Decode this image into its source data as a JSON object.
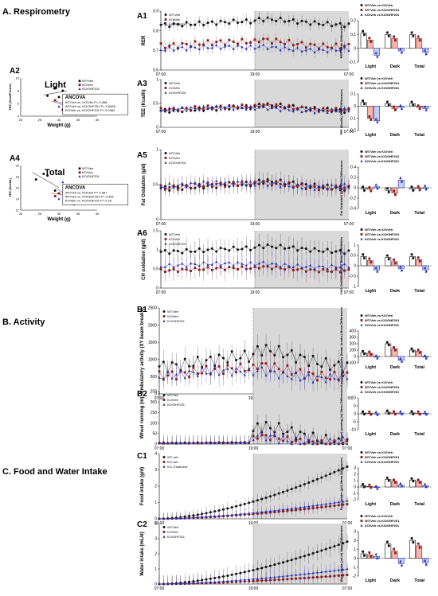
{
  "sections": {
    "respirometry": "A. Respirometry",
    "activity": "B. Activity",
    "food_water": "C. Food and Water Intake"
  },
  "colors": {
    "wt": "#111111",
    "ko_veh": "#8b1a1a",
    "ko_ghf": "#1f2bb0",
    "wt_bar": "#ffffff",
    "ko_bar": "#f2b8b0",
    "ghf_bar": "#c8cdf5"
  },
  "series_names": [
    "WT/Veh",
    "KO/Veh",
    "KO/GHF201"
  ],
  "series_names_c1": [
    "WT-veh",
    "KO-veh",
    "KO-Treatment"
  ],
  "comparisons": [
    "WT/Veh vs KO/Veh",
    "WT/Veh vs KO/GHF201",
    "KO/Veh vs KO/GHF201"
  ],
  "bar_categories": [
    "Light",
    "Dark",
    "Total"
  ],
  "time_ticks": [
    "07:00",
    "19:00",
    "07:00"
  ],
  "chart_data": [
    {
      "id": "A1",
      "type": "line",
      "ylabel": "RER",
      "yticks": [
        0.6,
        0.7,
        0.8,
        0.9
      ],
      "ylim": [
        0.6,
        0.9
      ],
      "base": [
        0.83,
        0.72,
        0.7
      ],
      "amp": [
        0.03,
        0.04,
        0.03
      ],
      "err": 0.03,
      "dark_shade": [
        0.5,
        1.0
      ]
    },
    {
      "id": "A3",
      "type": "line",
      "ylabel": "TEE (Kcal/h)",
      "yticks": [
        0.0,
        0.5,
        1.0
      ],
      "ylim": [
        0,
        1.0
      ],
      "base": [
        0.35,
        0.36,
        0.34
      ],
      "amp": [
        0.12,
        0.12,
        0.12
      ],
      "err": 0.05,
      "dark_shade": [
        0.5,
        1.0
      ]
    },
    {
      "id": "A5",
      "type": "line",
      "ylabel": "Fat Oxidation (g/d)",
      "yticks": [
        0.0,
        0.5,
        1.0
      ],
      "ylim": [
        0,
        1.0
      ],
      "base": [
        0.45,
        0.45,
        0.46
      ],
      "amp": [
        0.1,
        0.1,
        0.1
      ],
      "err": 0.12,
      "dark_shade": [
        0.5,
        1.0
      ]
    },
    {
      "id": "A6",
      "type": "line",
      "ylabel": "CH oxidation (g/d)",
      "yticks": [
        0.0,
        0.5,
        1.0,
        1.5
      ],
      "ylim": [
        0,
        1.5
      ],
      "base": [
        0.95,
        0.45,
        0.55
      ],
      "amp": [
        0.15,
        0.12,
        0.15
      ],
      "err": 0.3,
      "dark_shade": [
        0.5,
        1.0
      ]
    },
    {
      "id": "B1",
      "type": "line",
      "ylabel": "Ambulatory activity (XY beam breaks)",
      "yticks": [
        0,
        500,
        1000,
        1500,
        2000,
        2500
      ],
      "ylim": [
        0,
        2500
      ],
      "base": [
        800,
        500,
        450
      ],
      "amp": [
        500,
        400,
        350
      ],
      "err": 350,
      "dark_shade": [
        0.5,
        1.0
      ]
    },
    {
      "id": "B2",
      "type": "line",
      "ylabel": "Wheel running (m)",
      "yticks": [
        0,
        50,
        100,
        150,
        200,
        250
      ],
      "ylim": [
        0,
        250
      ],
      "base": [
        5,
        3,
        3
      ],
      "amp": [
        80,
        40,
        60
      ],
      "err": 40,
      "dark_shade": [
        0.5,
        1.0
      ],
      "wheel": true
    },
    {
      "id": "C1",
      "type": "line",
      "ylabel": "Food intake (g/d)",
      "yticks": [
        0,
        1,
        2,
        3,
        4
      ],
      "ylim": [
        0,
        4
      ],
      "cum_end": [
        3.2,
        0.9,
        1.1
      ],
      "err": 0.4,
      "dark_shade": [
        0.5,
        1.0
      ]
    },
    {
      "id": "C2",
      "type": "line",
      "ylabel": "Water intake (mL/d)",
      "yticks": [
        0,
        1,
        2,
        3,
        4
      ],
      "ylim": [
        0,
        4
      ],
      "cum_end": [
        2.8,
        0.6,
        1.0
      ],
      "err": 0.6,
      "dark_shade": [
        0.5,
        1.0
      ]
    },
    {
      "id": "A1-diff",
      "type": "bar",
      "ylabel": "RER Mean Differences",
      "yticks": [
        -0.1,
        0.0,
        0.1,
        0.2
      ],
      "ylim": [
        -0.1,
        0.2
      ],
      "values": [
        [
          0.11,
          0.06,
          -0.05
        ],
        [
          0.1,
          0.07,
          -0.02
        ],
        [
          0.1,
          0.07,
          -0.03
        ]
      ]
    },
    {
      "id": "A3-diff",
      "type": "bar",
      "ylabel": "TEE (Kcal/h) Mean Differences",
      "yticks": [
        -0.2,
        -0.1,
        0.0,
        0.1
      ],
      "ylim": [
        -0.2,
        0.1
      ],
      "values": [
        [
          0.03,
          -0.1,
          -0.12
        ],
        [
          0.02,
          -0.02,
          -0.01
        ],
        [
          0.02,
          -0.01,
          -0.02
        ]
      ]
    },
    {
      "id": "A5-diff",
      "type": "bar",
      "ylabel": "Fat Oxidation (g/d) Mean Differences",
      "yticks": [
        -0.4,
        -0.2,
        0.0,
        0.2,
        0.4
      ],
      "ylim": [
        -0.4,
        0.4
      ],
      "values": [
        [
          -0.02,
          -0.03,
          0.02
        ],
        [
          -0.05,
          -0.1,
          0.15
        ],
        [
          -0.02,
          -0.01,
          0.0
        ]
      ]
    },
    {
      "id": "A6-diff",
      "type": "bar",
      "ylabel": "CHO Oxidation (g/d) Mean Differences",
      "yticks": [
        -1.0,
        -0.5,
        0.0,
        0.5,
        1.0
      ],
      "ylim": [
        -1.0,
        1.0
      ],
      "values": [
        [
          0.45,
          0.25,
          -0.2
        ],
        [
          0.4,
          0.2,
          -0.15
        ],
        [
          0.45,
          0.3,
          -0.2
        ]
      ]
    },
    {
      "id": "B1-diff",
      "type": "bar",
      "ylabel": "Ambulatory Activity (beam breaks) Mean Differences",
      "yticks": [
        -100,
        0,
        100,
        200,
        300,
        400
      ],
      "ylim": [
        -100,
        400
      ],
      "values": [
        [
          60,
          50,
          -10
        ],
        [
          200,
          120,
          -60
        ],
        [
          100,
          80,
          -10
        ]
      ]
    },
    {
      "id": "B2-diff",
      "type": "bar",
      "ylabel": "Wheel running (m) Mean Differences",
      "yticks": [
        -10,
        -5,
        0,
        5,
        10
      ],
      "ylim": [
        -10,
        10
      ],
      "values": [
        [
          0.5,
          0.3,
          0.1
        ],
        [
          1.0,
          0.5,
          0.5
        ],
        [
          0.6,
          0.4,
          0.3
        ]
      ]
    },
    {
      "id": "C1-diff",
      "type": "bar",
      "ylabel": "Food Intake (g/d) Mean Differences",
      "yticks": [
        -2,
        -1,
        0,
        1,
        2,
        3
      ],
      "ylim": [
        -2,
        3
      ],
      "values": [
        [
          0.2,
          0.1,
          -0.1
        ],
        [
          1.2,
          0.9,
          0.3
        ],
        [
          1.1,
          0.9,
          0.2
        ]
      ]
    },
    {
      "id": "C2-diff",
      "type": "bar",
      "ylabel": "Water Intake (mL/d) Mean Differences",
      "yticks": [
        -2,
        -1,
        0,
        1,
        2,
        3
      ],
      "ylim": [
        -2,
        3
      ],
      "values": [
        [
          0.5,
          0.4,
          0.2
        ],
        [
          1.6,
          0.8,
          -0.6
        ],
        [
          2.0,
          1.4,
          -0.5
        ]
      ]
    },
    {
      "id": "A2",
      "type": "scatter",
      "title": "Light",
      "xlabel": "Weight (g)",
      "ylabel": "TEE (Kcal/Period)",
      "xticks": [
        20,
        25,
        30,
        35,
        40
      ],
      "yticks": [
        4,
        6,
        8,
        10
      ],
      "xlim": [
        20,
        40
      ],
      "ylim": [
        4,
        10
      ],
      "points": [
        [
          [
            27,
            7.2
          ],
          [
            29,
            8.5
          ],
          [
            30,
            7.0
          ],
          [
            31,
            8.0
          ]
        ],
        [
          [
            29,
            6.5
          ],
          [
            31,
            5.0
          ],
          [
            32,
            6.0
          ],
          [
            33,
            5.5
          ]
        ],
        [
          [
            30,
            5.5
          ],
          [
            32,
            7.0
          ],
          [
            33,
            6.2
          ],
          [
            34,
            4.5
          ]
        ]
      ],
      "ancova_title": "ANCOVA",
      "ancova": [
        "WT/Veh vs. KO/Veh P= 0.098",
        "WT/Veh vs. KO/GHF201 P= 0.6483",
        "KO/Veh vs. KO/GHF201 P= 0.0363"
      ]
    },
    {
      "id": "A4",
      "type": "scatter",
      "title": "Total",
      "xlabel": "Weight (g)",
      "ylabel": "TEE (Kcal/d)",
      "xticks": [
        20,
        25,
        30,
        35,
        40
      ],
      "yticks": [
        12,
        14,
        16,
        18,
        20
      ],
      "xlim": [
        20,
        40
      ],
      "ylim": [
        12,
        20
      ],
      "points": [
        [
          [
            24,
            17.5
          ],
          [
            26,
            18.5
          ],
          [
            27,
            18.2
          ],
          [
            29,
            15.5
          ]
        ],
        [
          [
            29,
            14.5
          ],
          [
            30,
            15.0
          ],
          [
            32,
            16.2
          ],
          [
            33,
            13.5
          ]
        ],
        [
          [
            30,
            14.0
          ],
          [
            31,
            17.0
          ],
          [
            32,
            15.2
          ],
          [
            34,
            13.0
          ]
        ]
      ],
      "ancova_title": "ANCOVA",
      "ancova": [
        "WT/Veh vs. KO/Veh P= 0.087",
        "WT/Veh vs. KO/GHF201 P= 0.325",
        "KO/Veh vs. KO/GHF201 P= 0.29"
      ]
    }
  ]
}
